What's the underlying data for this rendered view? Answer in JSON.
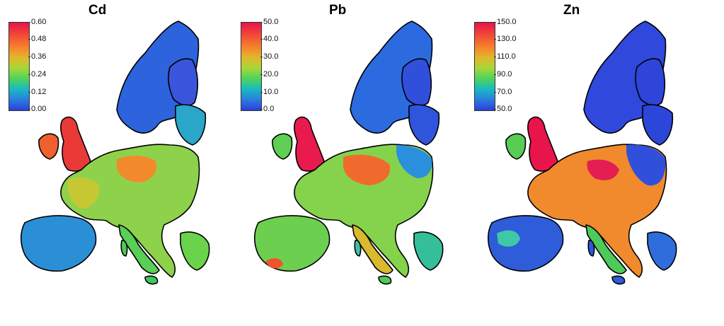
{
  "panels": [
    {
      "title": "Cd",
      "legend_ticks": [
        "0.60",
        "0.48",
        "0.36",
        "0.24",
        "0.12",
        "0.00"
      ]
    },
    {
      "title": "Pb",
      "legend_ticks": [
        "50.0",
        "40.0",
        "30.0",
        "20.0",
        "10.0",
        "0.0"
      ]
    },
    {
      "title": "Zn",
      "legend_ticks": [
        "150.0",
        "130.0",
        "110.0",
        "90.0",
        "70.0",
        "50.0"
      ]
    }
  ],
  "colors": {
    "low": "#2b3fd8",
    "mid_low": "#19b9c2",
    "mid": "#4fd35a",
    "mid_high": "#e2b82a",
    "high": "#f0413a",
    "max": "#e8124a",
    "border": "#000000"
  }
}
